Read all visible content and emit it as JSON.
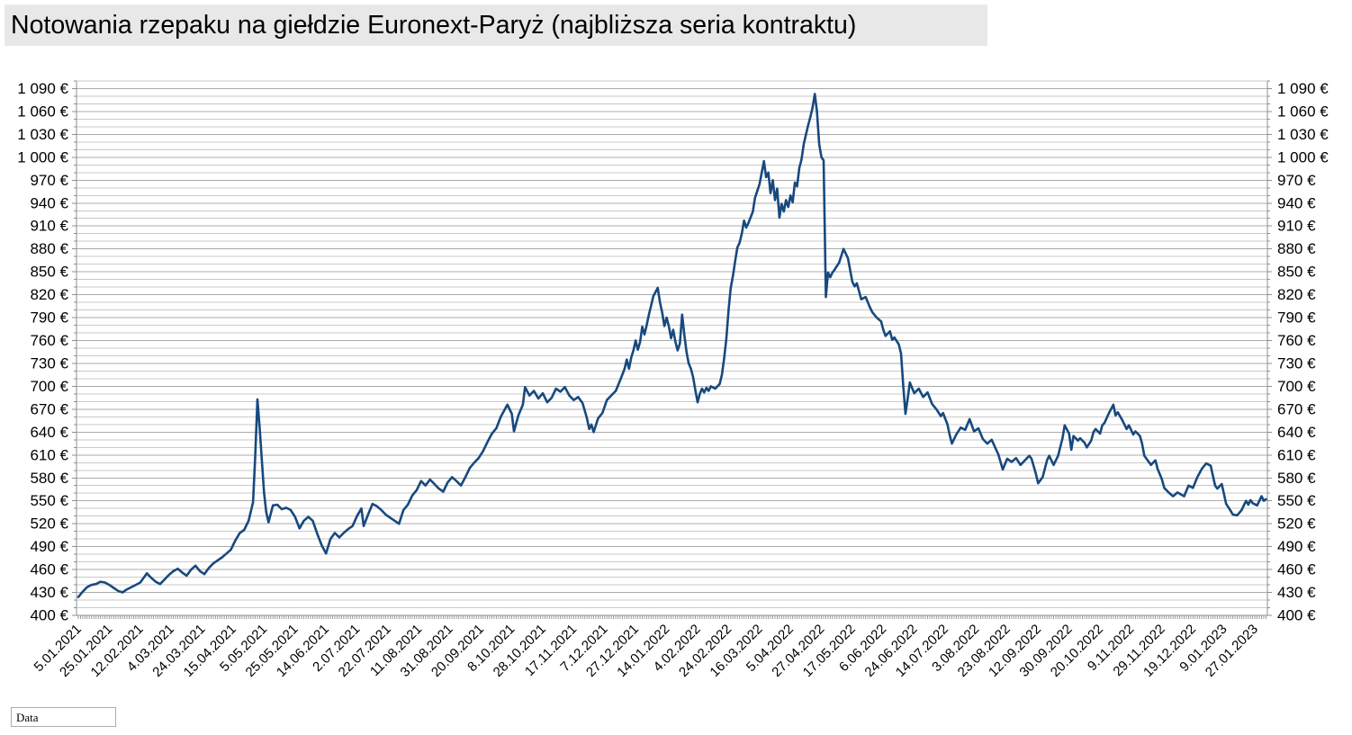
{
  "title": "Notowania rzepaku na giełdzie Euronext-Paryż (najbliższa seria kontraktu)",
  "filter_button": {
    "label": "Data"
  },
  "chart_data": {
    "type": "line",
    "title": "Notowania rzepaku na giełdzie Euronext-Paryż (najbliższa seria kontraktu)",
    "xlabel": "Data",
    "ylabel": "",
    "currency_suffix": " €",
    "line_color": "#17497E",
    "grid": true,
    "legend_position": "none",
    "y_axis": {
      "min": 400,
      "max": 1100,
      "major_step": 30,
      "minor_step": 10,
      "tick_values": [
        400,
        430,
        460,
        490,
        520,
        550,
        580,
        610,
        640,
        670,
        700,
        730,
        760,
        790,
        820,
        850,
        880,
        910,
        940,
        970,
        1000,
        1030,
        1060,
        1090
      ]
    },
    "x_labels": [
      "5.01.2021",
      "25.01.2021",
      "12.02.2021",
      "4.03.2021",
      "24.03.2021",
      "15.04.2021",
      "5.05.2021",
      "25.05.2021",
      "14.06.2021",
      "2.07.2021",
      "22.07.2021",
      "11.08.2021",
      "31.08.2021",
      "20.09.2021",
      "8.10.2021",
      "28.10.2021",
      "17.11.2021",
      "7.12.2021",
      "27.12.2021",
      "14.01.2022",
      "4.02.2022",
      "24.02.2022",
      "16.03.2022",
      "5.04.2022",
      "27.04.2022",
      "17.05.2022",
      "6.06.2022",
      "24.06.2022",
      "14.07.2022",
      "3.08.2022",
      "23.08.2022",
      "12.09.2022",
      "30.09.2022",
      "20.10.2022",
      "9.11.2022",
      "29.11.2022",
      "19.12.2022",
      "9.01.2023",
      "27.01.2023"
    ],
    "trading_days_per_label": 14,
    "points": [
      [
        0,
        424
      ],
      [
        2,
        431
      ],
      [
        4,
        437
      ],
      [
        6,
        440
      ],
      [
        8,
        441
      ],
      [
        10,
        444
      ],
      [
        12,
        443
      ],
      [
        14,
        440
      ],
      [
        16,
        436
      ],
      [
        18,
        432
      ],
      [
        20,
        430
      ],
      [
        22,
        434
      ],
      [
        24,
        437
      ],
      [
        26,
        440
      ],
      [
        28,
        443
      ],
      [
        30,
        451
      ],
      [
        31,
        455
      ],
      [
        33,
        449
      ],
      [
        35,
        444
      ],
      [
        37,
        441
      ],
      [
        39,
        447
      ],
      [
        41,
        453
      ],
      [
        43,
        458
      ],
      [
        45,
        461
      ],
      [
        47,
        456
      ],
      [
        49,
        452
      ],
      [
        51,
        460
      ],
      [
        53,
        465
      ],
      [
        55,
        458
      ],
      [
        57,
        454
      ],
      [
        59,
        462
      ],
      [
        61,
        468
      ],
      [
        63,
        472
      ],
      [
        65,
        476
      ],
      [
        67,
        481
      ],
      [
        69,
        486
      ],
      [
        71,
        498
      ],
      [
        73,
        508
      ],
      [
        75,
        512
      ],
      [
        77,
        524
      ],
      [
        79,
        548
      ],
      [
        80,
        610
      ],
      [
        81,
        683
      ],
      [
        82,
        645
      ],
      [
        83,
        603
      ],
      [
        84,
        560
      ],
      [
        85,
        535
      ],
      [
        86,
        522
      ],
      [
        88,
        544
      ],
      [
        90,
        545
      ],
      [
        92,
        539
      ],
      [
        94,
        541
      ],
      [
        96,
        538
      ],
      [
        98,
        529
      ],
      [
        100,
        514
      ],
      [
        102,
        524
      ],
      [
        104,
        529
      ],
      [
        106,
        524
      ],
      [
        108,
        507
      ],
      [
        110,
        492
      ],
      [
        112,
        481
      ],
      [
        114,
        500
      ],
      [
        116,
        508
      ],
      [
        118,
        502
      ],
      [
        120,
        508
      ],
      [
        122,
        513
      ],
      [
        124,
        517
      ],
      [
        126,
        530
      ],
      [
        128,
        540
      ],
      [
        129,
        517
      ],
      [
        131,
        532
      ],
      [
        133,
        546
      ],
      [
        135,
        543
      ],
      [
        137,
        538
      ],
      [
        139,
        532
      ],
      [
        141,
        528
      ],
      [
        143,
        524
      ],
      [
        145,
        520
      ],
      [
        147,
        538
      ],
      [
        149,
        545
      ],
      [
        151,
        557
      ],
      [
        153,
        564
      ],
      [
        155,
        576
      ],
      [
        157,
        570
      ],
      [
        159,
        578
      ],
      [
        161,
        572
      ],
      [
        163,
        566
      ],
      [
        165,
        562
      ],
      [
        167,
        574
      ],
      [
        169,
        581
      ],
      [
        171,
        576
      ],
      [
        173,
        570
      ],
      [
        175,
        581
      ],
      [
        177,
        593
      ],
      [
        179,
        600
      ],
      [
        181,
        606
      ],
      [
        183,
        615
      ],
      [
        185,
        627
      ],
      [
        187,
        638
      ],
      [
        189,
        645
      ],
      [
        191,
        660
      ],
      [
        194,
        676
      ],
      [
        196,
        664
      ],
      [
        197,
        641
      ],
      [
        199,
        662
      ],
      [
        201,
        676
      ],
      [
        202,
        699
      ],
      [
        204,
        688
      ],
      [
        206,
        694
      ],
      [
        208,
        684
      ],
      [
        210,
        691
      ],
      [
        212,
        679
      ],
      [
        214,
        685
      ],
      [
        216,
        697
      ],
      [
        218,
        693
      ],
      [
        220,
        699
      ],
      [
        222,
        688
      ],
      [
        224,
        682
      ],
      [
        226,
        686
      ],
      [
        228,
        678
      ],
      [
        229,
        668
      ],
      [
        230,
        658
      ],
      [
        231,
        644
      ],
      [
        232,
        650
      ],
      [
        233,
        640
      ],
      [
        235,
        658
      ],
      [
        237,
        665
      ],
      [
        239,
        682
      ],
      [
        241,
        688
      ],
      [
        243,
        694
      ],
      [
        245,
        708
      ],
      [
        247,
        723
      ],
      [
        248,
        735
      ],
      [
        249,
        723
      ],
      [
        250,
        738
      ],
      [
        251,
        747
      ],
      [
        252,
        760
      ],
      [
        253,
        748
      ],
      [
        254,
        758
      ],
      [
        255,
        778
      ],
      [
        256,
        768
      ],
      [
        257,
        780
      ],
      [
        258,
        794
      ],
      [
        259,
        806
      ],
      [
        260,
        818
      ],
      [
        262,
        829
      ],
      [
        263,
        810
      ],
      [
        264,
        797
      ],
      [
        265,
        779
      ],
      [
        266,
        790
      ],
      [
        267,
        779
      ],
      [
        268,
        763
      ],
      [
        269,
        774
      ],
      [
        270,
        758
      ],
      [
        271,
        747
      ],
      [
        272,
        756
      ],
      [
        273,
        794
      ],
      [
        274,
        768
      ],
      [
        275,
        745
      ],
      [
        276,
        730
      ],
      [
        277,
        723
      ],
      [
        278,
        712
      ],
      [
        279,
        695
      ],
      [
        280,
        679
      ],
      [
        281,
        690
      ],
      [
        282,
        697
      ],
      [
        283,
        692
      ],
      [
        284,
        698
      ],
      [
        285,
        694
      ],
      [
        286,
        700
      ],
      [
        288,
        697
      ],
      [
        290,
        703
      ],
      [
        291,
        715
      ],
      [
        292,
        736
      ],
      [
        293,
        762
      ],
      [
        294,
        800
      ],
      [
        295,
        829
      ],
      [
        296,
        845
      ],
      [
        297,
        864
      ],
      [
        298,
        882
      ],
      [
        299,
        888
      ],
      [
        300,
        900
      ],
      [
        301,
        917
      ],
      [
        302,
        908
      ],
      [
        303,
        914
      ],
      [
        305,
        929
      ],
      [
        306,
        947
      ],
      [
        308,
        965
      ],
      [
        310,
        995
      ],
      [
        311,
        974
      ],
      [
        312,
        980
      ],
      [
        313,
        953
      ],
      [
        314,
        970
      ],
      [
        315,
        944
      ],
      [
        316,
        959
      ],
      [
        317,
        921
      ],
      [
        318,
        939
      ],
      [
        319,
        929
      ],
      [
        320,
        944
      ],
      [
        321,
        935
      ],
      [
        322,
        950
      ],
      [
        323,
        941
      ],
      [
        324,
        967
      ],
      [
        325,
        962
      ],
      [
        326,
        986
      ],
      [
        327,
        997
      ],
      [
        328,
        1017
      ],
      [
        329,
        1030
      ],
      [
        330,
        1042
      ],
      [
        331,
        1053
      ],
      [
        332,
        1065
      ],
      [
        333,
        1083
      ],
      [
        334,
        1060
      ],
      [
        335,
        1017
      ],
      [
        336,
        1000
      ],
      [
        337,
        996
      ],
      [
        338,
        817
      ],
      [
        339,
        849
      ],
      [
        340,
        843
      ],
      [
        341,
        849
      ],
      [
        342,
        853
      ],
      [
        344,
        862
      ],
      [
        346,
        880
      ],
      [
        348,
        868
      ],
      [
        350,
        837
      ],
      [
        351,
        831
      ],
      [
        352,
        835
      ],
      [
        354,
        814
      ],
      [
        356,
        817
      ],
      [
        358,
        803
      ],
      [
        359,
        797
      ],
      [
        361,
        790
      ],
      [
        363,
        785
      ],
      [
        364,
        774
      ],
      [
        365,
        766
      ],
      [
        367,
        772
      ],
      [
        368,
        761
      ],
      [
        369,
        764
      ],
      [
        371,
        755
      ],
      [
        372,
        743
      ],
      [
        373,
        700
      ],
      [
        374,
        664
      ],
      [
        375,
        684
      ],
      [
        376,
        705
      ],
      [
        378,
        691
      ],
      [
        380,
        697
      ],
      [
        382,
        686
      ],
      [
        384,
        692
      ],
      [
        386,
        677
      ],
      [
        388,
        670
      ],
      [
        390,
        661
      ],
      [
        391,
        665
      ],
      [
        393,
        650
      ],
      [
        394,
        636
      ],
      [
        395,
        625
      ],
      [
        397,
        637
      ],
      [
        399,
        646
      ],
      [
        401,
        643
      ],
      [
        403,
        657
      ],
      [
        405,
        641
      ],
      [
        407,
        645
      ],
      [
        409,
        631
      ],
      [
        411,
        625
      ],
      [
        413,
        630
      ],
      [
        415,
        617
      ],
      [
        416,
        611
      ],
      [
        418,
        591
      ],
      [
        420,
        605
      ],
      [
        422,
        601
      ],
      [
        424,
        606
      ],
      [
        426,
        597
      ],
      [
        428,
        603
      ],
      [
        430,
        609
      ],
      [
        431,
        605
      ],
      [
        433,
        585
      ],
      [
        434,
        573
      ],
      [
        436,
        581
      ],
      [
        438,
        603
      ],
      [
        439,
        609
      ],
      [
        441,
        597
      ],
      [
        443,
        609
      ],
      [
        445,
        632
      ],
      [
        446,
        649
      ],
      [
        448,
        638
      ],
      [
        449,
        617
      ],
      [
        450,
        635
      ],
      [
        452,
        629
      ],
      [
        453,
        632
      ],
      [
        455,
        626
      ],
      [
        456,
        620
      ],
      [
        458,
        629
      ],
      [
        459,
        640
      ],
      [
        460,
        644
      ],
      [
        462,
        638
      ],
      [
        463,
        649
      ],
      [
        464,
        652
      ],
      [
        466,
        665
      ],
      [
        468,
        676
      ],
      [
        469,
        662
      ],
      [
        470,
        666
      ],
      [
        472,
        656
      ],
      [
        473,
        650
      ],
      [
        474,
        644
      ],
      [
        475,
        649
      ],
      [
        477,
        637
      ],
      [
        478,
        641
      ],
      [
        480,
        635
      ],
      [
        481,
        625
      ],
      [
        482,
        609
      ],
      [
        484,
        601
      ],
      [
        485,
        597
      ],
      [
        487,
        603
      ],
      [
        488,
        592
      ],
      [
        490,
        578
      ],
      [
        491,
        567
      ],
      [
        493,
        561
      ],
      [
        495,
        556
      ],
      [
        497,
        561
      ],
      [
        500,
        556
      ],
      [
        502,
        570
      ],
      [
        504,
        567
      ],
      [
        506,
        581
      ],
      [
        508,
        592
      ],
      [
        510,
        599
      ],
      [
        512,
        596
      ],
      [
        514,
        570
      ],
      [
        515,
        566
      ],
      [
        517,
        572
      ],
      [
        519,
        546
      ],
      [
        521,
        537
      ],
      [
        522,
        532
      ],
      [
        524,
        531
      ],
      [
        526,
        538
      ],
      [
        527,
        544
      ],
      [
        528,
        550
      ],
      [
        529,
        545
      ],
      [
        530,
        551
      ],
      [
        531,
        547
      ],
      [
        533,
        544
      ],
      [
        535,
        556
      ],
      [
        536,
        550
      ],
      [
        537,
        552
      ]
    ]
  }
}
